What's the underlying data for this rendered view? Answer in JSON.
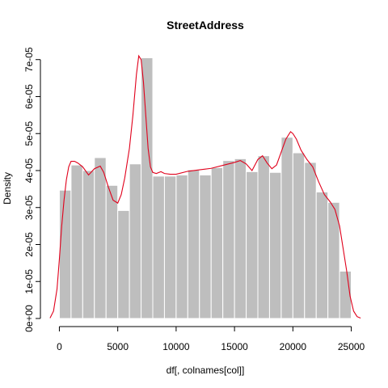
{
  "chart_data": {
    "type": "histogram",
    "title": "StreetAddress",
    "xlabel": "df[, colnames[col]]",
    "ylabel": "Density",
    "xlim": [
      -1000,
      26000
    ],
    "ylim": [
      0,
      7.3e-05
    ],
    "x_ticks": [
      0,
      5000,
      10000,
      15000,
      20000,
      25000
    ],
    "x_tick_labels": [
      "0",
      "5000",
      "10000",
      "15000",
      "20000",
      "25000"
    ],
    "y_ticks": [
      0,
      1e-05,
      2e-05,
      3e-05,
      4e-05,
      5e-05,
      6e-05,
      7e-05
    ],
    "y_tick_labels": [
      "0e+00",
      "1e-05",
      "2e-05",
      "3e-05",
      "4e-05",
      "5e-05",
      "6e-05",
      "7e-05"
    ],
    "bin_width": 1000,
    "bin_starts": [
      0,
      1000,
      2000,
      3000,
      4000,
      5000,
      6000,
      7000,
      8000,
      9000,
      10000,
      11000,
      12000,
      13000,
      14000,
      15000,
      16000,
      17000,
      18000,
      19000,
      20000,
      21000,
      22000,
      23000,
      24000
    ],
    "densities": [
      3.47e-05,
      4.15e-05,
      4e-05,
      4.35e-05,
      3.6e-05,
      2.92e-05,
      4.18e-05,
      7.05e-05,
      3.85e-05,
      3.85e-05,
      3.88e-05,
      4.02e-05,
      3.88e-05,
      4.08e-05,
      4.27e-05,
      4.32e-05,
      3.97e-05,
      4.4e-05,
      3.95e-05,
      4.9e-05,
      4.48e-05,
      4.22e-05,
      3.42e-05,
      3.14e-05,
      1.28e-05
    ],
    "density_curve": {
      "color": "#e0001b",
      "x": [
        -800,
        -500,
        -200,
        0,
        200,
        400,
        600,
        800,
        1000,
        1300,
        1600,
        2000,
        2500,
        3000,
        3500,
        3800,
        4200,
        4600,
        5000,
        5300,
        5600,
        6000,
        6300,
        6600,
        6800,
        7000,
        7200,
        7400,
        7600,
        7800,
        8000,
        8300,
        8700,
        9000,
        9500,
        10000,
        11000,
        12000,
        13000,
        14000,
        15000,
        15500,
        16000,
        16500,
        17000,
        17400,
        17800,
        18200,
        18600,
        19000,
        19400,
        19800,
        20000,
        20300,
        20700,
        21200,
        21700,
        22200,
        22700,
        23200,
        23600,
        24000,
        24300,
        24600,
        24900,
        25200,
        25500,
        25800
      ],
      "y": [
        1e-07,
        2e-06,
        8e-06,
        1.6e-05,
        2.5e-05,
        3.2e-05,
        3.75e-05,
        4.1e-05,
        4.25e-05,
        4.25e-05,
        4.2e-05,
        4.1e-05,
        3.88e-05,
        4.05e-05,
        4.12e-05,
        3.95e-05,
        3.55e-05,
        3.2e-05,
        3.12e-05,
        3.35e-05,
        3.8e-05,
        4.6e-05,
        5.5e-05,
        6.6e-05,
        7.1e-05,
        7e-05,
        6.4e-05,
        5.5e-05,
        4.6e-05,
        4.1e-05,
        3.95e-05,
        3.92e-05,
        3.97e-05,
        3.92e-05,
        3.9e-05,
        3.9e-05,
        3.98e-05,
        4.02e-05,
        4.06e-05,
        4.14e-05,
        4.22e-05,
        4.27e-05,
        4.18e-05,
        4e-05,
        4.3e-05,
        4.4e-05,
        4.2e-05,
        4.05e-05,
        4.15e-05,
        4.5e-05,
        4.85e-05,
        5.05e-05,
        5e-05,
        4.85e-05,
        4.55e-05,
        4.3e-05,
        4.1e-05,
        3.7e-05,
        3.35e-05,
        3.15e-05,
        2.95e-05,
        2.5e-05,
        1.9e-05,
        1.3e-05,
        6e-06,
        2e-06,
        5e-07,
        1e-07
      ]
    }
  }
}
